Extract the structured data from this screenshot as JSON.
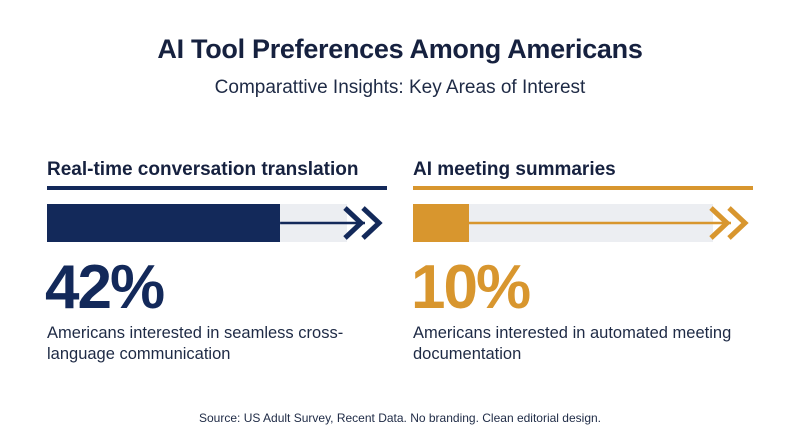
{
  "header": {
    "title": "AI Tool Preferences Among Americans",
    "subtitle": "Comparattive Insights: Key Areas of Interest"
  },
  "footer": {
    "source": "Source: US Adult Survey, Recent Data. No branding. Clean editorial design."
  },
  "colors": {
    "navy": "#13295a",
    "gold": "#d8962e",
    "track": "#eceef2"
  },
  "chart_data": [
    {
      "type": "bar",
      "title": "Real-time conversation translation",
      "value": 42,
      "value_label": "42%",
      "unit": "%",
      "ylim": [
        0,
        100
      ],
      "description": "Americans interested in seamless cross-language communication",
      "color": "#13295a"
    },
    {
      "type": "bar",
      "title": "AI meeting summaries",
      "value": 10,
      "value_label": "10%",
      "unit": "%",
      "ylim": [
        0,
        100
      ],
      "description": "Americans interested in automated meeting documentation",
      "color": "#d8962e"
    }
  ]
}
